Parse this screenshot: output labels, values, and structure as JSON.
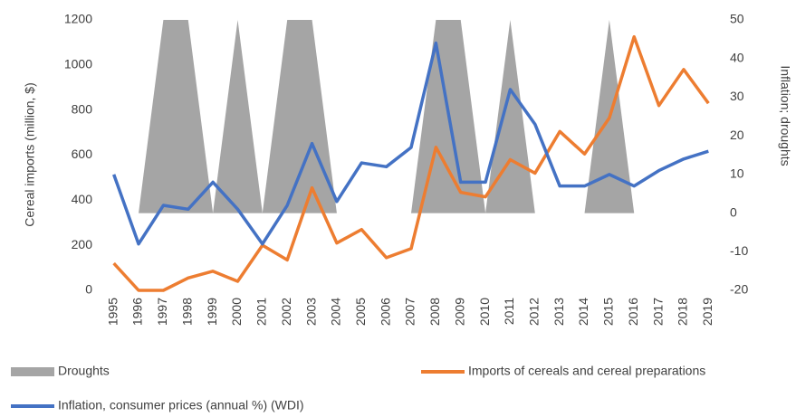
{
  "chart_data": {
    "type": "combo",
    "categories": [
      "1995",
      "1996",
      "1997",
      "1998",
      "1999",
      "2000",
      "2001",
      "2002",
      "2003",
      "2004",
      "2005",
      "2006",
      "2007",
      "2008",
      "2009",
      "2010",
      "2011",
      "2012",
      "2013",
      "2014",
      "2015",
      "2016",
      "2017",
      "2018",
      "2019"
    ],
    "y_label": "Cereal imports (million, $)",
    "y2_label": "Inflation; droughts",
    "ylim": [
      0,
      1200
    ],
    "yticks": [
      0,
      200,
      400,
      600,
      800,
      1000,
      1200
    ],
    "y2lim": [
      -20,
      50
    ],
    "y2ticks": [
      -20,
      -10,
      0,
      10,
      20,
      30,
      40,
      50
    ],
    "series": [
      {
        "name": "Droughts",
        "type": "area",
        "axis": "y2",
        "color": "#a5a5a5",
        "values": [
          0,
          0,
          50,
          50,
          0,
          50,
          0,
          50,
          50,
          0,
          0,
          0,
          0,
          50,
          50,
          0,
          50,
          0,
          0,
          0,
          50,
          0,
          0,
          0,
          0
        ]
      },
      {
        "name": "Imports of cereals and cereal preparations",
        "type": "line",
        "color": "#ed7d31",
        "values": [
          120,
          0,
          0,
          55,
          85,
          40,
          200,
          135,
          455,
          210,
          270,
          145,
          185,
          635,
          435,
          415,
          580,
          520,
          705,
          605,
          765,
          1125,
          820,
          980,
          830
        ]
      },
      {
        "name": "Inflation, consumer prices (annual %) (WDI)",
        "type": "line",
        "axis": "y2",
        "color": "#4472c4",
        "values": [
          10,
          -8,
          2,
          1,
          8,
          1,
          -8,
          2,
          18,
          3,
          13,
          12,
          17,
          44,
          8,
          8,
          32,
          23,
          7,
          7,
          10,
          7,
          11,
          14,
          16
        ]
      }
    ]
  }
}
